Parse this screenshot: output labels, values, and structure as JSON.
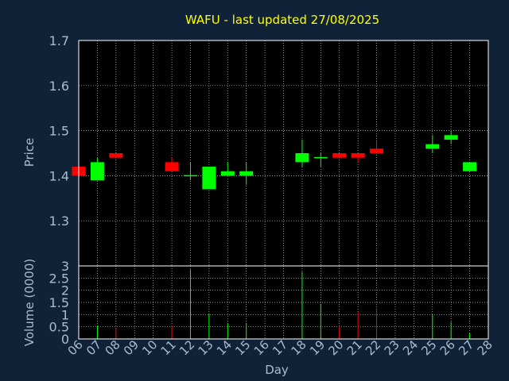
{
  "chart_data": {
    "type": "candlestick",
    "title": "WAFU - last updated 27/08/2025",
    "xlabel": "Day",
    "price_ylabel": "Price",
    "volume_ylabel": "Volume (0000)",
    "x_ticks": [
      "06",
      "07",
      "08",
      "09",
      "10",
      "11",
      "12",
      "13",
      "14",
      "15",
      "16",
      "17",
      "18",
      "19",
      "20",
      "21",
      "22",
      "23",
      "24",
      "25",
      "26",
      "27",
      "28"
    ],
    "price_yticks": [
      "1.3",
      "1.4",
      "1.5",
      "1.6",
      "1.7"
    ],
    "price_ylim": [
      1.2,
      1.7
    ],
    "volume_yticks": [
      "0",
      "0.5",
      "1",
      "1.5",
      "2",
      "2.5",
      "3"
    ],
    "volume_ylim": [
      0,
      3
    ],
    "grid": true,
    "colors": {
      "up": "#00ff00",
      "down": "#ff0000",
      "grid": "#c8c8c8",
      "background": "#0f2237"
    },
    "candles": [
      {
        "day": "06",
        "open": 1.42,
        "high": 1.42,
        "low": 1.4,
        "close": 1.4,
        "volume": 0.0
      },
      {
        "day": "07",
        "open": 1.39,
        "high": 1.44,
        "low": 1.39,
        "close": 1.43,
        "volume": 0.55
      },
      {
        "day": "08",
        "open": 1.45,
        "high": 1.45,
        "low": 1.44,
        "close": 1.44,
        "volume": 0.45
      },
      {
        "day": "11",
        "open": 1.43,
        "high": 1.44,
        "low": 1.41,
        "close": 1.41,
        "volume": 0.55
      },
      {
        "day": "12",
        "open": 1.4,
        "high": 1.43,
        "low": 1.39,
        "close": 1.4,
        "volume": 2.85
      },
      {
        "day": "13",
        "open": 1.37,
        "high": 1.42,
        "low": 1.37,
        "close": 1.42,
        "volume": 1.05
      },
      {
        "day": "14",
        "open": 1.4,
        "high": 1.43,
        "low": 1.4,
        "close": 1.41,
        "volume": 0.65
      },
      {
        "day": "15",
        "open": 1.4,
        "high": 1.43,
        "low": 1.38,
        "close": 1.41,
        "volume": 0.65
      },
      {
        "day": "18",
        "open": 1.43,
        "high": 1.48,
        "low": 1.42,
        "close": 1.45,
        "volume": 2.75
      },
      {
        "day": "19",
        "open": 1.44,
        "high": 1.45,
        "low": 1.42,
        "close": 1.44,
        "volume": 1.45
      },
      {
        "day": "20",
        "open": 1.45,
        "high": 1.45,
        "low": 1.44,
        "close": 1.44,
        "volume": 0.5
      },
      {
        "day": "21",
        "open": 1.45,
        "high": 1.45,
        "low": 1.43,
        "close": 1.44,
        "volume": 1.1
      },
      {
        "day": "22",
        "open": 1.46,
        "high": 1.48,
        "low": 1.45,
        "close": 1.45,
        "volume": 1.25
      },
      {
        "day": "25",
        "open": 1.46,
        "high": 1.49,
        "low": 1.45,
        "close": 1.47,
        "volume": 1.0
      },
      {
        "day": "26",
        "open": 1.48,
        "high": 1.5,
        "low": 1.47,
        "close": 1.49,
        "volume": 0.7
      },
      {
        "day": "27",
        "open": 1.41,
        "high": 1.43,
        "low": 1.41,
        "close": 1.43,
        "volume": 0.25
      }
    ]
  }
}
